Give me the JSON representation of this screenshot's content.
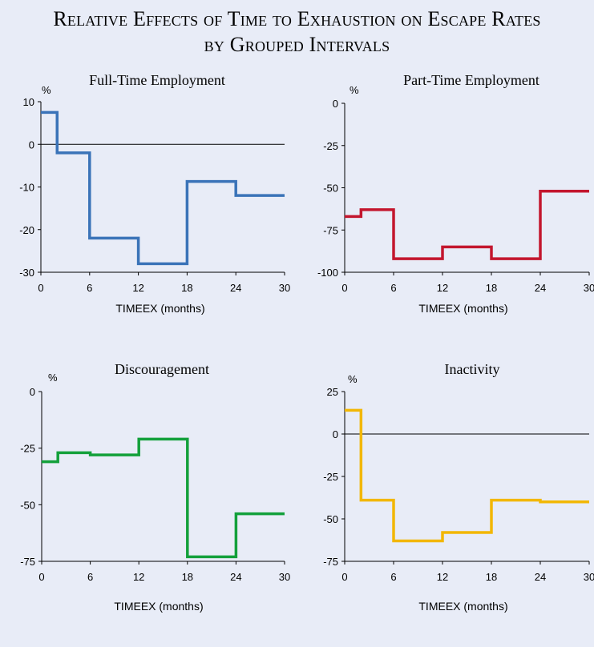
{
  "title": {
    "line1": "Relative Effects of Time to Exhaustion on Escape Rates",
    "line2": "by Grouped Intervals"
  },
  "chart_data": [
    {
      "type": "line",
      "step": true,
      "title": "Full-Time Employment",
      "ylabel": "%",
      "xlabel": "TIMEEX (months)",
      "xlim": [
        0,
        30
      ],
      "xticks": [
        0,
        6,
        12,
        18,
        24,
        30
      ],
      "ylim": [
        -30,
        10
      ],
      "yticks": [
        10,
        0,
        -10,
        -20,
        -30
      ],
      "color": "#3a73b8",
      "x": [
        0,
        2,
        6,
        12,
        18,
        24,
        30
      ],
      "values": [
        7.5,
        -2,
        -22,
        -28,
        -8.7,
        -12,
        -12
      ]
    },
    {
      "type": "line",
      "step": true,
      "title": "Part-Time Employment",
      "ylabel": "%",
      "xlabel": "TIMEEX (months)",
      "xlim": [
        0,
        30
      ],
      "xticks": [
        0,
        6,
        12,
        18,
        24,
        30
      ],
      "ylim": [
        -100,
        0
      ],
      "yticks": [
        0,
        -25,
        -50,
        -75,
        -100
      ],
      "color": "#c3162e",
      "x": [
        0,
        2,
        6,
        12,
        18,
        24,
        30
      ],
      "values": [
        -67,
        -63,
        -92,
        -85,
        -92,
        -52,
        -52
      ]
    },
    {
      "type": "line",
      "step": true,
      "title": "Discouragement",
      "ylabel": "%",
      "xlabel": "TIMEEX (months)",
      "xlim": [
        0,
        30
      ],
      "xticks": [
        0,
        6,
        12,
        18,
        24,
        30
      ],
      "ylim": [
        -75,
        0
      ],
      "yticks": [
        0,
        -25,
        -50,
        -75
      ],
      "color": "#13a03b",
      "x": [
        0,
        2,
        6,
        12,
        18,
        24,
        30
      ],
      "values": [
        -31,
        -27,
        -28,
        -21,
        -73,
        -54,
        -54
      ]
    },
    {
      "type": "line",
      "step": true,
      "title": "Inactivity",
      "ylabel": "%",
      "xlabel": "TIMEEX (months)",
      "xlim": [
        0,
        30
      ],
      "xticks": [
        0,
        6,
        12,
        18,
        24,
        30
      ],
      "ylim": [
        -75,
        25
      ],
      "yticks": [
        25,
        0,
        -25,
        -50,
        -75
      ],
      "color": "#f2b705",
      "x": [
        0,
        2,
        6,
        12,
        18,
        24,
        30
      ],
      "values": [
        14,
        -39,
        -63,
        -58,
        -39,
        -40,
        -40
      ]
    }
  ]
}
